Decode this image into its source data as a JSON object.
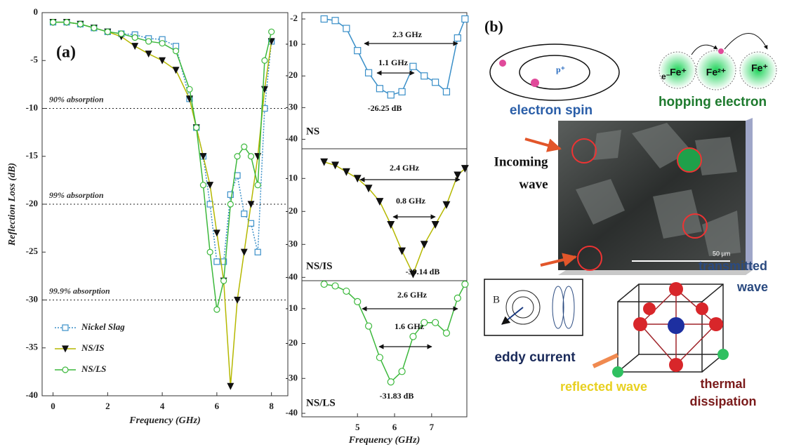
{
  "chart_data": [
    {
      "type": "line",
      "panel_label": "(a)",
      "x_label": "Frequency (GHz)",
      "y_label": "Reflection Loss (dB)",
      "xlim": [
        -0.4,
        8.6
      ],
      "ylim": [
        -40,
        0
      ],
      "xticks": [
        0,
        2,
        4,
        6,
        8
      ],
      "yticks": [
        0,
        -5,
        -10,
        -15,
        -20,
        -25,
        -30,
        -35,
        -40
      ],
      "legend": "lower left",
      "reference_lines": [
        {
          "value": -10,
          "label": "90% absorption"
        },
        {
          "value": -20,
          "label": "99% absorption"
        },
        {
          "value": -30,
          "label": "99.9% absorption"
        }
      ],
      "x": [
        0,
        0.5,
        1,
        1.5,
        2,
        2.5,
        3,
        3.5,
        4,
        4.5,
        5,
        5.25,
        5.5,
        5.75,
        6,
        6.25,
        6.5,
        6.75,
        7,
        7.25,
        7.5,
        7.75,
        8
      ],
      "series": [
        {
          "name": "Nickel Slag",
          "color": "#3a8fc8",
          "line_color": "#3a8fc8",
          "marker": "square",
          "filled": false,
          "dash": true,
          "values": [
            -1,
            -1,
            -1.2,
            -1.6,
            -2,
            -2.2,
            -2.3,
            -2.7,
            -2.8,
            -3.5,
            -9,
            -12,
            -15,
            -20,
            -26,
            -26,
            -19,
            -17,
            -21,
            -22,
            -25,
            -10,
            -3
          ]
        },
        {
          "name": "NS/IS",
          "color": "#111111",
          "line_color": "#b5b800",
          "marker": "triangle-down",
          "filled": true,
          "dash": false,
          "values": [
            -1,
            -1,
            -1.2,
            -1.6,
            -2,
            -2.5,
            -3.5,
            -4.3,
            -5,
            -6,
            -9,
            -12,
            -15,
            -18,
            -23,
            -28,
            -39,
            -30,
            -25,
            -20,
            -15,
            -8,
            -3
          ]
        },
        {
          "name": "NS/LS",
          "color": "#3cb83c",
          "line_color": "#3cb83c",
          "marker": "circle",
          "filled": false,
          "dash": false,
          "values": [
            -1,
            -1,
            -1.2,
            -1.6,
            -2,
            -2.2,
            -2.6,
            -3,
            -3.2,
            -4,
            -8,
            -12,
            -18,
            -25,
            -31,
            -28,
            -20,
            -15,
            -14,
            -15,
            -18,
            -5,
            -2
          ]
        }
      ]
    },
    {
      "type": "line",
      "label": "NS",
      "xlim": [
        3.5,
        7.95
      ],
      "ylim": [
        -43,
        0
      ],
      "yticks": [
        -2,
        -10,
        -20,
        -30,
        -40
      ],
      "annotations": [
        "2.3 GHz",
        "1.1 GHz",
        "-26.25 dB"
      ],
      "x": [
        4.1,
        4.4,
        4.7,
        5.0,
        5.3,
        5.6,
        5.9,
        6.2,
        6.5,
        6.8,
        7.1,
        7.4,
        7.7,
        7.9
      ],
      "series": [
        {
          "color": "#3a8fc8",
          "line_color": "#3a8fc8",
          "marker": "square",
          "filled": false,
          "dash": false,
          "values": [
            -2,
            -2.5,
            -5,
            -12,
            -19,
            -24,
            -26,
            -25,
            -17,
            -20,
            -22,
            -25,
            -8,
            -2
          ]
        }
      ]
    },
    {
      "type": "line",
      "label": "NS/IS",
      "xlim": [
        3.5,
        7.95
      ],
      "ylim": [
        -41,
        -1
      ],
      "yticks": [
        -10,
        -20,
        -30,
        -40
      ],
      "annotations": [
        "2.4 GHz",
        "0.8 GHz",
        "-39.14 dB"
      ],
      "x": [
        4.1,
        4.4,
        4.7,
        5.0,
        5.3,
        5.6,
        5.9,
        6.2,
        6.5,
        6.8,
        7.1,
        7.4,
        7.7,
        7.9
      ],
      "series": [
        {
          "color": "#111111",
          "line_color": "#b5b800",
          "marker": "triangle-down",
          "filled": true,
          "dash": false,
          "values": [
            -5,
            -6,
            -8,
            -10,
            -13,
            -17,
            -24,
            -32,
            -39,
            -30,
            -24,
            -18,
            -9,
            -7
          ]
        }
      ]
    },
    {
      "type": "line",
      "label": "NS/LS",
      "x_label": "Frequency (GHz)",
      "xlim": [
        3.5,
        7.95
      ],
      "ylim": [
        -41,
        -2
      ],
      "xticks": [
        5,
        6,
        7
      ],
      "yticks": [
        -10,
        -20,
        -30,
        -40
      ],
      "annotations": [
        "2.6 GHz",
        "1.6 GHz",
        "-31.83 dB"
      ],
      "x": [
        4.1,
        4.4,
        4.7,
        5.0,
        5.3,
        5.6,
        5.9,
        6.2,
        6.5,
        6.8,
        7.1,
        7.4,
        7.7,
        7.9
      ],
      "series": [
        {
          "color": "#3cb83c",
          "line_color": "#3cb83c",
          "marker": "circle",
          "filled": false,
          "dash": false,
          "values": [
            -3,
            -3.5,
            -5,
            -8,
            -15,
            -24,
            -31,
            -28,
            -18,
            -14,
            -14,
            -17,
            -7,
            -3
          ]
        }
      ]
    }
  ],
  "diagram": {
    "label": "(b)",
    "proton": "p⁺",
    "electron_spin": "electron spin",
    "hop_electron": "e⁻",
    "hop_ions": [
      "Fe⁺",
      "Fe²⁺",
      "Fe⁺"
    ],
    "hopping_electron": "hopping electron",
    "incoming_wave": [
      "Incoming",
      "wave"
    ],
    "transmitted_wave": [
      "transmitted",
      "wave"
    ],
    "scale_bar": "50 µm",
    "field": "B",
    "eddy_current": "eddy current",
    "reflected_wave": "reflected wave",
    "thermal_dissipation": [
      "thermal",
      "dissipation"
    ]
  }
}
